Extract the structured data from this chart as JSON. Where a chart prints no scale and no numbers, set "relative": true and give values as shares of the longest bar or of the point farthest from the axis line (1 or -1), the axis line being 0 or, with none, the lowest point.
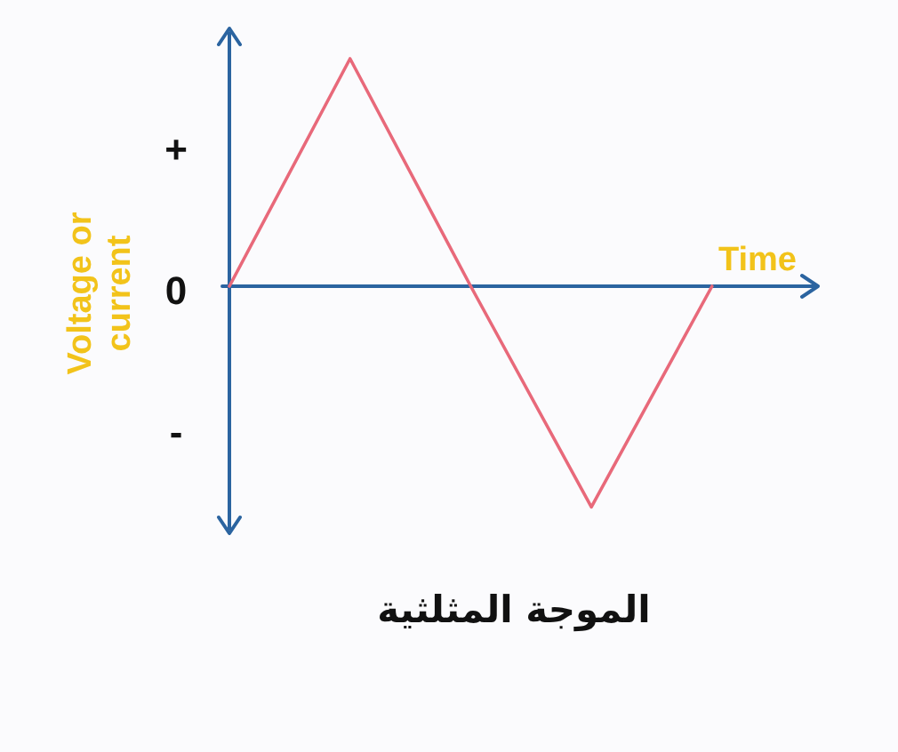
{
  "chart_data": {
    "type": "line",
    "title": "الموجة المثلثية",
    "xlabel": "Time",
    "ylabel": "Voltage or current",
    "relative": true,
    "categories": [
      null,
      null,
      null,
      null,
      null
    ],
    "series": [
      {
        "color": "#e8697a",
        "values": [
          0,
          1,
          0,
          -0.97,
          0
        ]
      }
    ],
    "ref_lines": [
      {
        "axis": "y",
        "value": 0,
        "color": "#2b64a0"
      }
    ],
    "annotations": [
      "+",
      "0",
      "-"
    ]
  }
}
